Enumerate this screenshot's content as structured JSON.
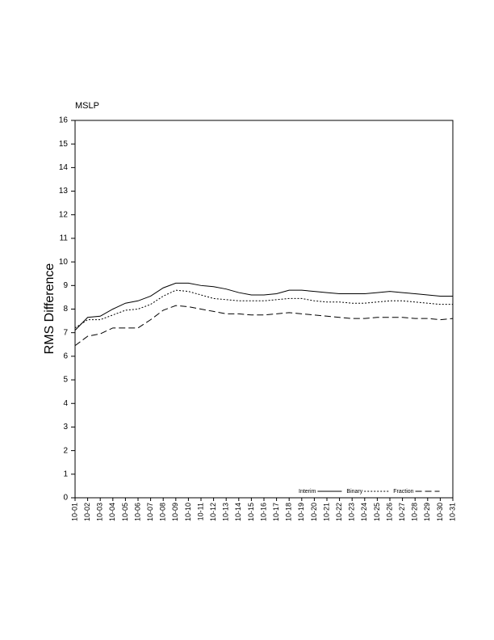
{
  "chart_data": {
    "type": "line",
    "title": "MSLP",
    "y_label": "RMS Difference",
    "categories": [
      "10-01",
      "10-02",
      "10-03",
      "10-04",
      "10-05",
      "10-06",
      "10-07",
      "10-08",
      "10-09",
      "10-10",
      "10-11",
      "10-12",
      "10-13",
      "10-14",
      "10-15",
      "10-16",
      "10-17",
      "10-18",
      "10-19",
      "10-20",
      "10-21",
      "10-22",
      "10-23",
      "10-24",
      "10-25",
      "10-26",
      "10-27",
      "10-28",
      "10-29",
      "10-30",
      "10-31"
    ],
    "series": [
      {
        "name": "Interim",
        "color": "#000000",
        "dash": "solid",
        "values": [
          7.1,
          7.65,
          7.7,
          8.0,
          8.25,
          8.35,
          8.55,
          8.9,
          9.1,
          9.1,
          9.0,
          8.95,
          8.85,
          8.7,
          8.6,
          8.6,
          8.65,
          8.8,
          8.8,
          8.75,
          8.7,
          8.65,
          8.65,
          8.65,
          8.7,
          8.75,
          8.7,
          8.65,
          8.6,
          8.55,
          8.55
        ]
      },
      {
        "name": "Binary",
        "color": "#000000",
        "dash": "dotted",
        "values": [
          7.2,
          7.55,
          7.55,
          7.75,
          7.95,
          8.0,
          8.2,
          8.55,
          8.8,
          8.75,
          8.6,
          8.45,
          8.4,
          8.35,
          8.35,
          8.35,
          8.4,
          8.45,
          8.45,
          8.35,
          8.3,
          8.3,
          8.25,
          8.25,
          8.3,
          8.35,
          8.35,
          8.3,
          8.25,
          8.2,
          8.2
        ]
      },
      {
        "name": "Fraction",
        "color": "#000000",
        "dash": "dashed",
        "values": [
          6.45,
          6.85,
          6.95,
          7.2,
          7.2,
          7.2,
          7.55,
          7.95,
          8.15,
          8.1,
          8.0,
          7.9,
          7.8,
          7.8,
          7.75,
          7.75,
          7.8,
          7.85,
          7.8,
          7.75,
          7.7,
          7.65,
          7.6,
          7.6,
          7.65,
          7.65,
          7.65,
          7.6,
          7.6,
          7.55,
          7.6
        ]
      }
    ],
    "ylim": [
      0,
      16
    ],
    "yticks": [
      0,
      1,
      2,
      3,
      4,
      5,
      6,
      7,
      8,
      9,
      10,
      11,
      12,
      13,
      14,
      15,
      16
    ],
    "grid": false,
    "legend": "bottom-right"
  }
}
